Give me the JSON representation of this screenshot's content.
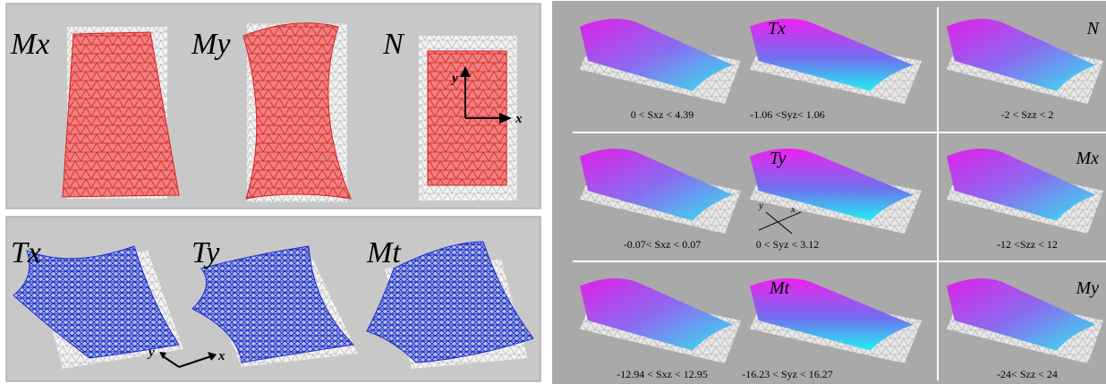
{
  "left_top": {
    "labels": [
      "Mx",
      "My",
      "N"
    ],
    "axes": {
      "y": "y",
      "x": "x"
    }
  },
  "left_bottom": {
    "labels": [
      "Tx",
      "Ty",
      "Mt"
    ],
    "axes": {
      "y": "y",
      "x": "x"
    }
  },
  "right": {
    "rows": [
      {
        "label": "Tx",
        "captions": [
          "0 < Sxz < 4.39",
          "-1.06 <Syz< 1.06"
        ],
        "side": {
          "label": "N",
          "caption": "-2 < Szz < 2"
        }
      },
      {
        "label": "Ty",
        "captions": [
          "-0.07< Sxz < 0.07",
          "0 < Syz < 3.12"
        ],
        "side": {
          "label": "Mx",
          "caption": "-12 <Szz < 12"
        },
        "axes": {
          "y": "y",
          "x": "x"
        }
      },
      {
        "label": "Mt",
        "captions": [
          "-12.94 < Sxz < 12.95",
          "-16.23 < Syz < 16.27"
        ],
        "side": {
          "label": "My",
          "caption": "-24< Szz < 24"
        }
      }
    ]
  }
}
